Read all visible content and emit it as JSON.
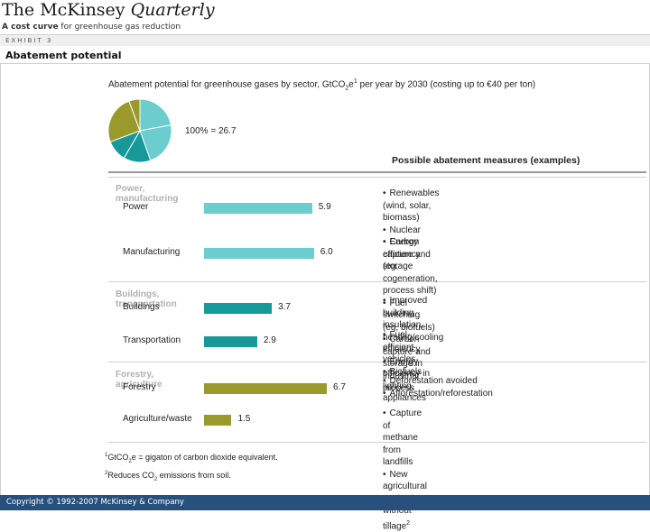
{
  "masthead": {
    "brand_prefix": "The ",
    "brand_main": "McKinsey ",
    "brand_italic": "Quarterly"
  },
  "tagline": {
    "bold": "A cost curve",
    "rest": " for greenhouse gas reduction"
  },
  "exhibit": {
    "label": "EXHIBIT 3"
  },
  "page_title": "Abatement potential",
  "subtitle": {
    "before": "Abatement potential for greenhouse gases by sector, GtCO",
    "sub": "2",
    "after_sub": "e",
    "sup": "1",
    "rest": " per year by 2030 (costing up to €40 per ton)"
  },
  "total": "100% = 26.7",
  "measures_header": "Possible abatement measures (examples)",
  "chart_data": {
    "type": "bar",
    "title": "Abatement potential for greenhouse gases by sector, GtCO2e per year by 2030 (costing up to €40 per ton)",
    "total": 26.7,
    "groups": [
      {
        "name": "Power, manufacturing",
        "color": "#6bcdcd"
      },
      {
        "name": "Buildings, transportation",
        "color": "#17999a"
      },
      {
        "name": "Forestry, agriculture",
        "color": "#9a9a2c"
      }
    ],
    "categories": [
      "Power",
      "Manufacturing",
      "Buildings",
      "Transportation",
      "Forestry",
      "Agriculture/waste"
    ],
    "values": [
      5.9,
      6.0,
      3.7,
      2.9,
      6.7,
      1.5
    ],
    "value_labels": [
      "5.9",
      "6.0",
      "3.7",
      "2.9",
      "6.7",
      "1.5"
    ],
    "group_index": [
      0,
      0,
      1,
      1,
      2,
      2
    ],
    "xlim": [
      0,
      6.7
    ]
  },
  "measures": [
    [
      "Renewables (wind, solar, biomass)",
      "Nuclear",
      "Carbon capture and storage"
    ],
    [
      "Energy efficiency (eg, cogeneration, process shift)",
      "Fuel switching (eg, biofuels)",
      "Carbon capture and storage in industrial process"
    ],
    [
      "Improved building insulation, heating/cooling efficiency",
      "Energy efficiency in lighting, appliances"
    ],
    [
      "Fuel-efficient vehicles",
      "Biofuels"
    ],
    [
      "Deforestation avoided",
      "Afforestation/reforestation"
    ],
    [
      "Capture of methane from landfills",
      "New agricultural methods without tillage"
    ]
  ],
  "last_measure_sup": "2",
  "footnotes": {
    "f1_sup": "1",
    "f1_a": "GtCO",
    "f1_sub": "2",
    "f1_b": "e = gigaton of carbon dioxide equivalent.",
    "f2_sup": "2",
    "f2_a": "Reduces CO",
    "f2_sub": "2",
    "f2_b": " emissions from soil."
  },
  "copyright": "Copyright © 1992-2007 McKinsey & Company"
}
